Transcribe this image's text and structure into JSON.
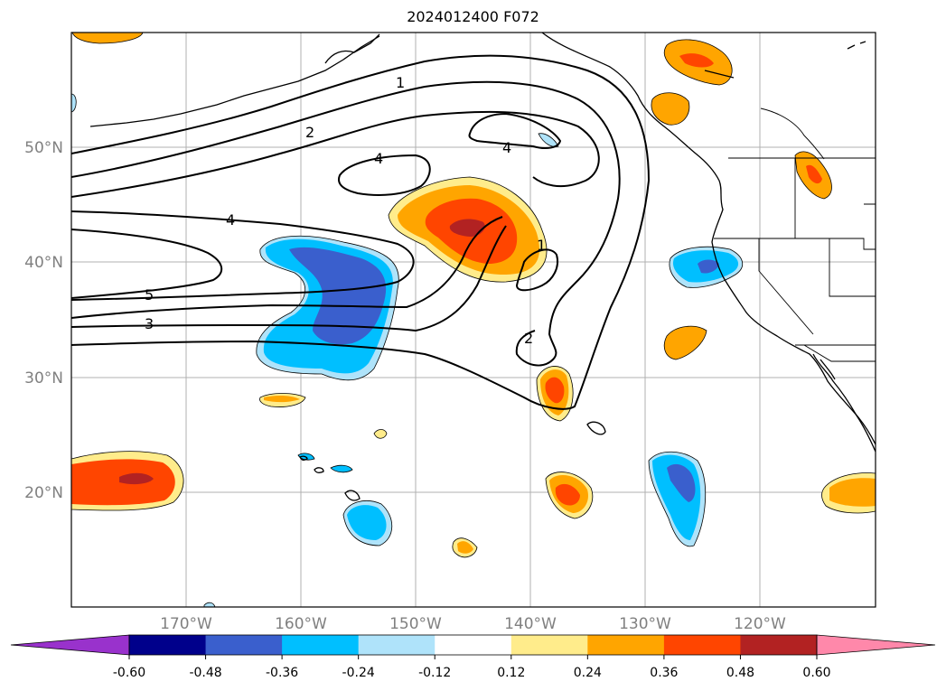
{
  "title": "2024012400 F072",
  "map": {
    "projection": "lat-lon",
    "lon_range": [
      -180,
      -110
    ],
    "lat_range": [
      10,
      60
    ],
    "grid": true,
    "lat_labels": [
      "50°N",
      "40°N",
      "30°N",
      "20°N"
    ],
    "lon_labels": [
      "170°W",
      "160°W",
      "150°W",
      "140°W",
      "130°W",
      "120°W"
    ],
    "contour_labels": [
      "1",
      "2",
      "4",
      "4",
      "4",
      "5",
      "3",
      "1",
      "2"
    ]
  },
  "colorbar": {
    "ticks": [
      "-0.60",
      "-0.48",
      "-0.36",
      "-0.24",
      "-0.12",
      "0.12",
      "0.24",
      "0.36",
      "0.48",
      "0.60"
    ],
    "colors": {
      "below": "#9932cc",
      "bins": [
        "#00008b",
        "#3a5fcd",
        "#00bfff",
        "#afe3fa",
        "#ffffff",
        "#ffec8b",
        "#ffa500",
        "#ff4500",
        "#b22222"
      ],
      "above": "#ff88aa"
    }
  }
}
